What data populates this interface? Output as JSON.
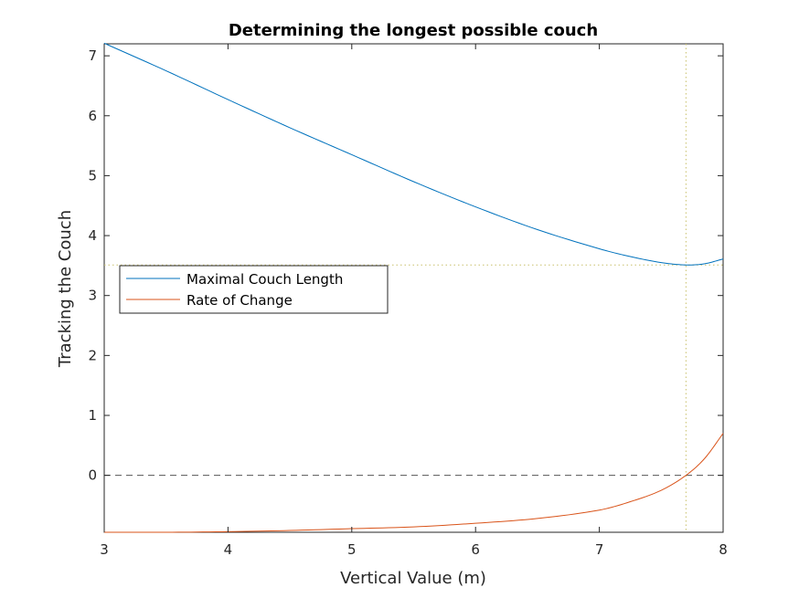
{
  "chart_data": {
    "type": "line",
    "title": "Determining the longest possible couch",
    "xlabel": "Vertical Value (m)",
    "ylabel": "Tracking the Couch",
    "xlim": [
      3,
      8
    ],
    "ylim": [
      -0.95,
      7.2
    ],
    "xticks": [
      "3",
      "4",
      "5",
      "6",
      "7",
      "8"
    ],
    "yticks": [
      "0",
      "1",
      "2",
      "3",
      "4",
      "5",
      "6",
      "7"
    ],
    "grid": false,
    "legend_position": "middle-left",
    "series": [
      {
        "name": "Maximal Couch Length",
        "color": "#0072BD",
        "x": [
          3.0,
          3.5,
          4.0,
          4.5,
          5.0,
          5.5,
          6.0,
          6.5,
          7.0,
          7.25,
          7.5,
          7.7,
          7.85,
          8.0
        ],
        "y": [
          7.21,
          6.75,
          6.27,
          5.8,
          5.35,
          4.9,
          4.48,
          4.1,
          3.78,
          3.65,
          3.55,
          3.51,
          3.53,
          3.61
        ]
      },
      {
        "name": "Rate of Change",
        "color": "#D95319",
        "x": [
          3.0,
          3.5,
          4.0,
          4.5,
          5.0,
          5.5,
          6.0,
          6.5,
          7.0,
          7.25,
          7.5,
          7.7,
          7.85,
          8.0
        ],
        "y": [
          -0.95,
          -0.95,
          -0.94,
          -0.92,
          -0.89,
          -0.86,
          -0.8,
          -0.72,
          -0.58,
          -0.44,
          -0.25,
          0.0,
          0.28,
          0.7
        ]
      }
    ],
    "reference_lines": [
      {
        "orientation": "horizontal",
        "value": 0,
        "style": "dashed",
        "color": "#555555"
      },
      {
        "orientation": "horizontal",
        "value": 3.51,
        "style": "dotted",
        "color": "#C9C06A"
      },
      {
        "orientation": "vertical",
        "value": 7.7,
        "style": "dotted",
        "color": "#C9C06A"
      }
    ]
  }
}
